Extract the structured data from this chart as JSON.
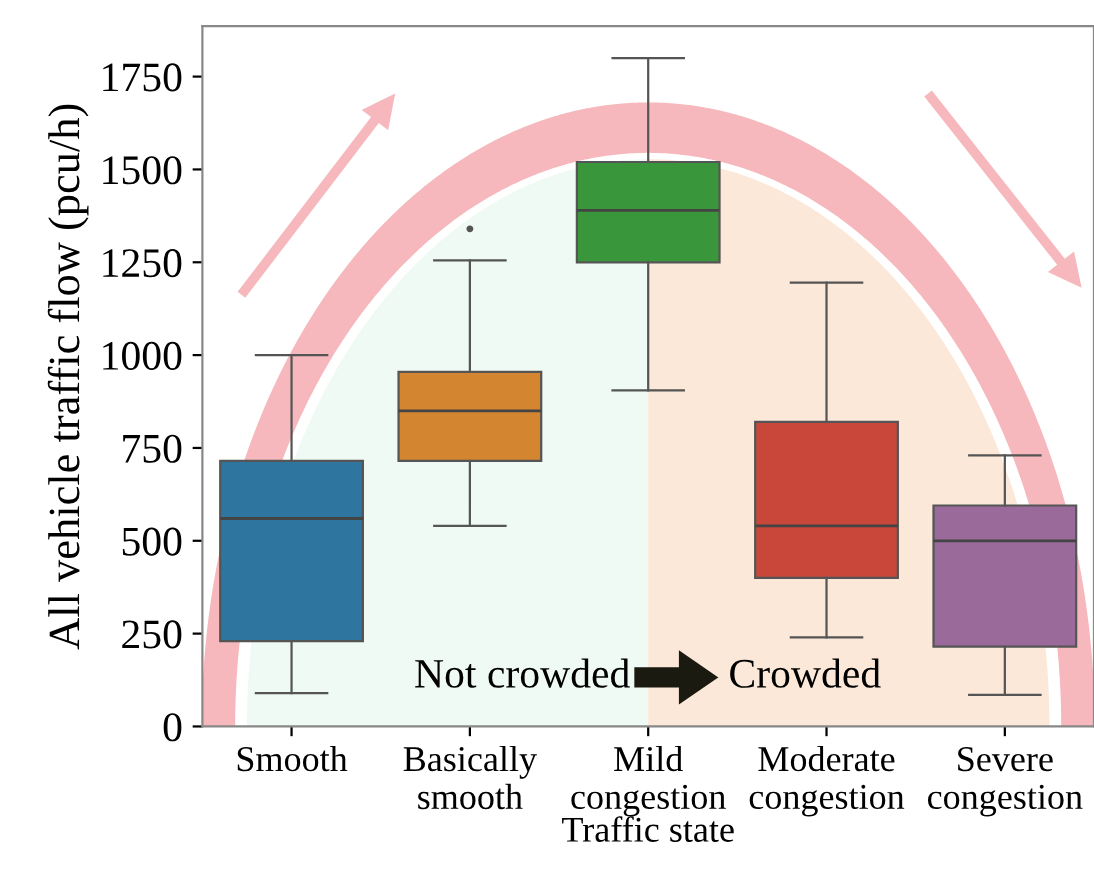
{
  "chart_data": {
    "type": "box",
    "xlabel": "Traffic state",
    "ylabel": "All vehicle traffic flow (pcu/h)",
    "categories": [
      "Smooth",
      "Basically\nsmooth",
      "Mild\ncongestion",
      "Moderate\ncongestion",
      "Severe\ncongestion"
    ],
    "colors": [
      "#2e75a0",
      "#d4852f",
      "#3a963a",
      "#c8473a",
      "#9a6a9a"
    ],
    "boxes": [
      {
        "low": 90,
        "q1": 230,
        "median": 560,
        "q3": 715,
        "high": 1000
      },
      {
        "low": 540,
        "q1": 715,
        "median": 850,
        "q3": 955,
        "high": 1255,
        "outliers": [
          1340
        ]
      },
      {
        "low": 905,
        "q1": 1250,
        "median": 1390,
        "q3": 1520,
        "high": 1800
      },
      {
        "low": 240,
        "q1": 400,
        "median": 540,
        "q3": 820,
        "high": 1195
      },
      {
        "low": 85,
        "q1": 215,
        "median": 500,
        "q3": 595,
        "high": 730
      }
    ],
    "ylim": [
      0,
      1886
    ],
    "yticks": [
      0,
      250,
      500,
      750,
      1000,
      1250,
      1500,
      1750
    ],
    "grid": false,
    "annotations": [
      "Not crowded",
      "Crowded"
    ]
  }
}
